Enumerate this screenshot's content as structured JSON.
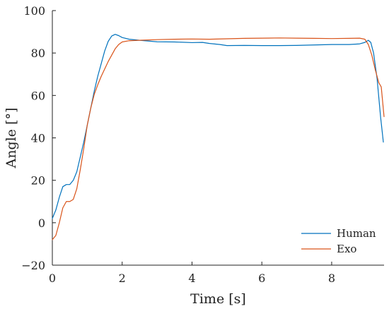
{
  "chart_data": {
    "type": "line",
    "xlabel": "Time [s]",
    "ylabel": "Angle [°]",
    "xlim": [
      0,
      9.5
    ],
    "ylim": [
      -20,
      100
    ],
    "x_ticks": [
      0,
      2,
      4,
      6,
      8
    ],
    "y_ticks": [
      -20,
      0,
      20,
      40,
      60,
      80,
      100
    ],
    "x_tick_labels": [
      "0",
      "2",
      "4",
      "6",
      "8"
    ],
    "y_tick_labels": [
      "−20",
      "0",
      "20",
      "40",
      "60",
      "80",
      "100"
    ],
    "grid": false,
    "legend": {
      "position": "bottom-right"
    },
    "series": [
      {
        "name": "Human",
        "color": "#0072BD",
        "points": [
          [
            0.0,
            2
          ],
          [
            0.1,
            6
          ],
          [
            0.2,
            12
          ],
          [
            0.3,
            17
          ],
          [
            0.4,
            18
          ],
          [
            0.5,
            18
          ],
          [
            0.6,
            20
          ],
          [
            0.7,
            24
          ],
          [
            0.8,
            31
          ],
          [
            0.9,
            38
          ],
          [
            1.0,
            46
          ],
          [
            1.1,
            54
          ],
          [
            1.2,
            62
          ],
          [
            1.3,
            69
          ],
          [
            1.4,
            75
          ],
          [
            1.5,
            81
          ],
          [
            1.6,
            85.5
          ],
          [
            1.7,
            88
          ],
          [
            1.8,
            88.8
          ],
          [
            1.9,
            88.2
          ],
          [
            2.0,
            87.3
          ],
          [
            2.2,
            86.5
          ],
          [
            2.5,
            86
          ],
          [
            3.0,
            85.3
          ],
          [
            3.5,
            85.2
          ],
          [
            4.0,
            84.9
          ],
          [
            4.3,
            85
          ],
          [
            4.5,
            84.5
          ],
          [
            4.8,
            84
          ],
          [
            5.0,
            83.5
          ],
          [
            5.5,
            83.6
          ],
          [
            6.0,
            83.5
          ],
          [
            6.5,
            83.5
          ],
          [
            7.0,
            83.6
          ],
          [
            7.5,
            83.8
          ],
          [
            8.0,
            84
          ],
          [
            8.5,
            84
          ],
          [
            8.8,
            84.3
          ],
          [
            8.95,
            85
          ],
          [
            9.05,
            86
          ],
          [
            9.12,
            85
          ],
          [
            9.2,
            80
          ],
          [
            9.3,
            68
          ],
          [
            9.4,
            50
          ],
          [
            9.48,
            38
          ]
        ]
      },
      {
        "name": "Exo",
        "color": "#D95319",
        "points": [
          [
            0.0,
            -8
          ],
          [
            0.1,
            -6
          ],
          [
            0.2,
            0
          ],
          [
            0.3,
            7
          ],
          [
            0.4,
            10
          ],
          [
            0.5,
            10
          ],
          [
            0.6,
            11
          ],
          [
            0.7,
            16
          ],
          [
            0.8,
            25
          ],
          [
            0.9,
            35
          ],
          [
            1.0,
            46
          ],
          [
            1.1,
            54
          ],
          [
            1.2,
            60.5
          ],
          [
            1.3,
            65
          ],
          [
            1.4,
            69
          ],
          [
            1.5,
            72.5
          ],
          [
            1.6,
            76
          ],
          [
            1.7,
            79
          ],
          [
            1.8,
            82
          ],
          [
            1.9,
            84
          ],
          [
            2.0,
            85.2
          ],
          [
            2.2,
            85.8
          ],
          [
            2.5,
            86
          ],
          [
            3.0,
            86.3
          ],
          [
            3.5,
            86.5
          ],
          [
            4.0,
            86.6
          ],
          [
            4.5,
            86.5
          ],
          [
            5.0,
            86.7
          ],
          [
            5.5,
            86.9
          ],
          [
            6.0,
            87
          ],
          [
            6.5,
            87.1
          ],
          [
            7.0,
            87
          ],
          [
            7.5,
            86.9
          ],
          [
            8.0,
            86.8
          ],
          [
            8.5,
            86.9
          ],
          [
            8.8,
            87
          ],
          [
            8.95,
            86.5
          ],
          [
            9.05,
            84
          ],
          [
            9.15,
            79
          ],
          [
            9.25,
            72
          ],
          [
            9.35,
            66
          ],
          [
            9.42,
            64
          ],
          [
            9.5,
            50
          ]
        ]
      }
    ]
  }
}
